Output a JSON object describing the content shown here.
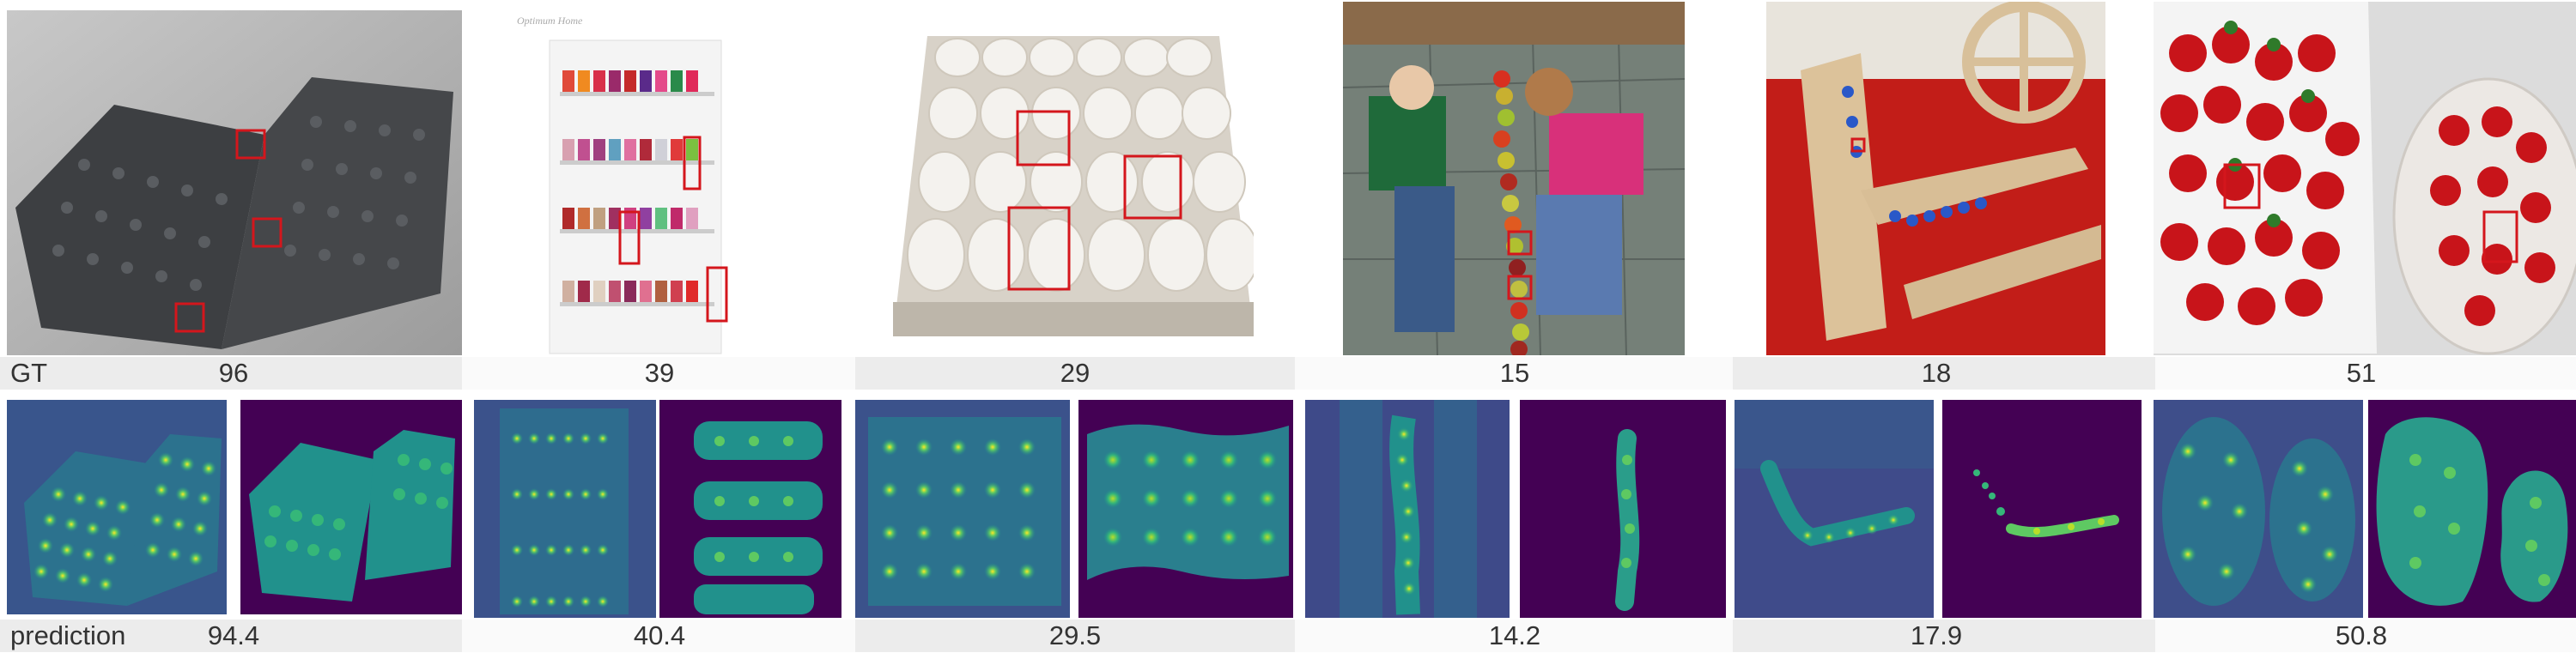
{
  "labels": {
    "gt": "GT",
    "prediction": "prediction"
  },
  "columns": [
    {
      "subject": "lego-plates",
      "gt": "96",
      "prediction": "94.4"
    },
    {
      "subject": "nail-polish-rack",
      "gt": "39",
      "prediction": "40.4",
      "watermark": "Optimum Home"
    },
    {
      "subject": "egg-tray",
      "gt": "29",
      "prediction": "29.5"
    },
    {
      "subject": "kids-and-apples",
      "gt": "15",
      "prediction": "14.2"
    },
    {
      "subject": "marble-machine",
      "gt": "18",
      "prediction": "17.9"
    },
    {
      "subject": "strawberries",
      "gt": "51",
      "prediction": "50.8"
    }
  ],
  "colors": {
    "box": "#d4161c",
    "heat_bg": "#440154",
    "heat_low": "#3b528b",
    "heat_mid": "#21918c",
    "heat_high": "#5ec962",
    "heat_peak": "#fde725"
  }
}
